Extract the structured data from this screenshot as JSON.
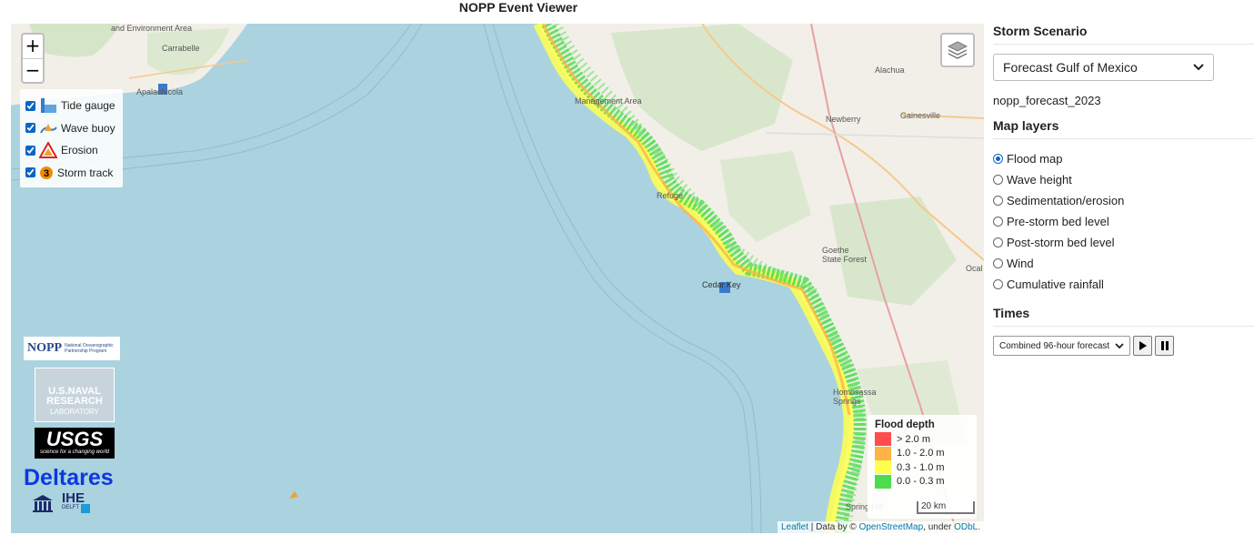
{
  "page_title": "NOPP Event Viewer",
  "map": {
    "zoom_in": "+",
    "zoom_out": "−",
    "layer_toggles": [
      {
        "label": "Tide gauge",
        "checked": true,
        "icon": "tide-gauge-icon"
      },
      {
        "label": "Wave buoy",
        "checked": true,
        "icon": "wave-buoy-icon"
      },
      {
        "label": "Erosion",
        "checked": true,
        "icon": "erosion-icon"
      },
      {
        "label": "Storm track",
        "checked": true,
        "icon": "storm-track-icon"
      }
    ],
    "place_labels": {
      "apalachicola": "Apalachicola",
      "carrabelle": "Carrabelle",
      "alachua": "Alachua",
      "newberry": "Newberry",
      "gainesville": "Gainesville",
      "cedar_key": "Cedar Key",
      "homosassa": "Homosassa Springs",
      "spring_hill": "Spring Hill",
      "ocala": "Ocal",
      "goethe": "Goethe State Forest",
      "environment": "and Environment Area",
      "management": "Management Area",
      "refuge": "Refuge"
    },
    "flood_legend": {
      "title": "Flood depth",
      "items": [
        {
          "label": "> 2.0 m",
          "color": "#ff4d4d"
        },
        {
          "label": "1.0 - 2.0 m",
          "color": "#ffb347"
        },
        {
          "label": "0.3 - 1.0 m",
          "color": "#ffff4d"
        },
        {
          "label": "0.0 - 0.3 m",
          "color": "#4ddc4d"
        }
      ]
    },
    "scale_label": "20 km",
    "attribution": {
      "leaflet": "Leaflet",
      "data_by": " | Data by © ",
      "osm": "OpenStreetMap",
      "under": ", under ",
      "odbl": "ODbL."
    },
    "logos": {
      "nopp": "NOPP",
      "nopp_sub": "National Oceanographic Partnership Program",
      "nrl_1": "U.S.NAVAL",
      "nrl_2": "RESEARCH",
      "nrl_3": "LABORATORY",
      "usgs": "USGS",
      "usgs_sub": "science for a changing world",
      "deltares": "Deltares",
      "ihe": "IHE",
      "delft": "DELFT"
    }
  },
  "sidebar": {
    "scenario_heading": "Storm Scenario",
    "scenario_selected": "Forecast Gulf of Mexico",
    "scenario_name": "nopp_forecast_2023",
    "layers_heading": "Map layers",
    "layers": [
      {
        "label": "Flood map",
        "selected": true
      },
      {
        "label": "Wave height",
        "selected": false
      },
      {
        "label": "Sedimentation/erosion",
        "selected": false
      },
      {
        "label": "Pre-storm bed level",
        "selected": false
      },
      {
        "label": "Post-storm bed level",
        "selected": false
      },
      {
        "label": "Wind",
        "selected": false
      },
      {
        "label": "Cumulative rainfall",
        "selected": false
      }
    ],
    "times_heading": "Times",
    "times_selected": "Combined 96-hour forecast"
  },
  "colors": {
    "accent": "#0a66c2",
    "water": "#aad3df",
    "land": "#f2efe9",
    "forest": "#cde4bf"
  }
}
